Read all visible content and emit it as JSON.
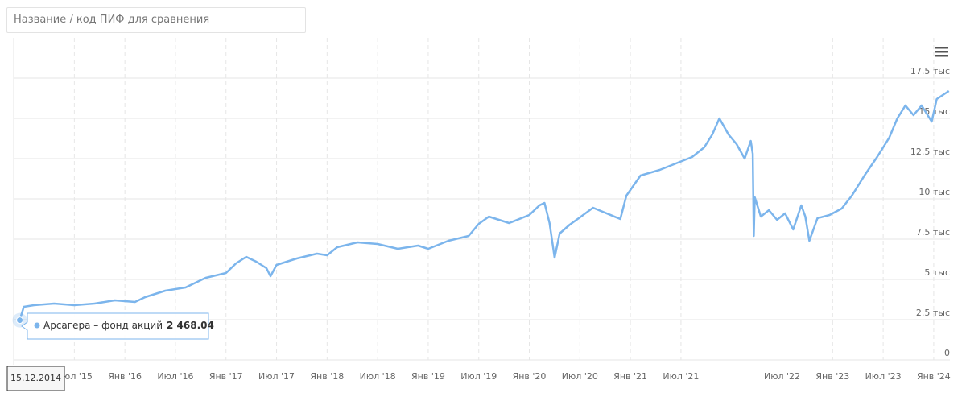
{
  "search_placeholder": "Название / код ПИФ для сравнения",
  "chart_data": {
    "type": "line",
    "series": [
      {
        "name": "Арсагера – фонд акций",
        "color": "#7cb5ec",
        "x": [
          2014.96,
          2015.0,
          2015.1,
          2015.3,
          2015.5,
          2015.7,
          2015.9,
          2016.1,
          2016.2,
          2016.4,
          2016.6,
          2016.8,
          2017.0,
          2017.1,
          2017.2,
          2017.3,
          2017.4,
          2017.44,
          2017.5,
          2017.7,
          2017.9,
          2018.0,
          2018.1,
          2018.3,
          2018.5,
          2018.7,
          2018.9,
          2019.0,
          2019.2,
          2019.4,
          2019.5,
          2019.6,
          2019.8,
          2020.0,
          2020.1,
          2020.15,
          2020.2,
          2020.25,
          2020.3,
          2020.4,
          2020.5,
          2020.63,
          2020.9,
          2020.96,
          2021.1,
          2021.29,
          2021.45,
          2021.61,
          2021.73,
          2021.81,
          2021.88,
          2021.97,
          2022.05,
          2022.13,
          2022.19,
          2022.21,
          2022.22,
          2022.23,
          2022.29,
          2022.37,
          2022.45,
          2022.53,
          2022.61,
          2022.69,
          2022.73,
          2022.77,
          2022.85,
          2022.97,
          2023.09,
          2023.19,
          2023.32,
          2023.44,
          2023.56,
          2023.64,
          2023.72,
          2023.8,
          2023.88,
          2023.98,
          2024.03,
          2024.15
        ],
        "values": [
          2468.04,
          3300,
          3400,
          3500,
          3400,
          3500,
          3700,
          3600,
          3900,
          4300,
          4500,
          5100,
          5400,
          6000,
          6400,
          6100,
          5700,
          5200,
          5900,
          6300,
          6600,
          6500,
          7000,
          7300,
          7200,
          6900,
          7100,
          6900,
          7400,
          7700,
          8450,
          8900,
          8500,
          9000,
          9600,
          9750,
          8500,
          6350,
          7850,
          8400,
          8850,
          9450,
          8750,
          10200,
          11450,
          11800,
          12200,
          12600,
          13200,
          14000,
          15000,
          14000,
          13400,
          12500,
          13600,
          12800,
          7700,
          10100,
          8900,
          9300,
          8700,
          9100,
          8100,
          9600,
          8900,
          7400,
          8800,
          9000,
          9400,
          10200,
          11500,
          12600,
          13800,
          15000,
          15800,
          15200,
          15800,
          14800,
          16200,
          16700
        ]
      }
    ],
    "xlim": [
      2014.9,
      2024.16
    ],
    "ylim": [
      0,
      20000
    ],
    "xticks": [
      {
        "value": 2015.5,
        "label": "Июл '15"
      },
      {
        "value": 2016,
        "label": "Янв '16"
      },
      {
        "value": 2016.5,
        "label": "Июл '16"
      },
      {
        "value": 2017,
        "label": "Янв '17"
      },
      {
        "value": 2017.5,
        "label": "Июл '17"
      },
      {
        "value": 2018,
        "label": "Янв '18"
      },
      {
        "value": 2018.5,
        "label": "Июл '18"
      },
      {
        "value": 2019,
        "label": "Янв '19"
      },
      {
        "value": 2019.5,
        "label": "Июл '19"
      },
      {
        "value": 2020,
        "label": "Янв '20"
      },
      {
        "value": 2020.5,
        "label": "Июл '20"
      },
      {
        "value": 2021,
        "label": "Янв '21"
      },
      {
        "value": 2021.5,
        "label": "Июл '21"
      },
      {
        "value": 2022.5,
        "label": "Июл '22"
      },
      {
        "value": 2023,
        "label": "Янв '23"
      },
      {
        "value": 2023.5,
        "label": "Июл '23"
      },
      {
        "value": 2024,
        "label": "Янв '24"
      }
    ],
    "yticks": [
      0,
      {
        "value": 2500,
        "label": "2.5 тыс"
      },
      {
        "value": 5000,
        "label": "5 тыс"
      },
      {
        "value": 7500,
        "label": "7.5 тыс"
      },
      {
        "value": 10000,
        "label": "10 тыс"
      },
      {
        "value": 12500,
        "label": "12.5 тыс"
      },
      {
        "value": 15000,
        "label": "15 тыс"
      },
      {
        "value": 17500,
        "label": "17.5 тыс"
      }
    ],
    "grid": true,
    "tooltip": {
      "x_label": "15.12.2014",
      "value_label": "2 468.04"
    }
  }
}
